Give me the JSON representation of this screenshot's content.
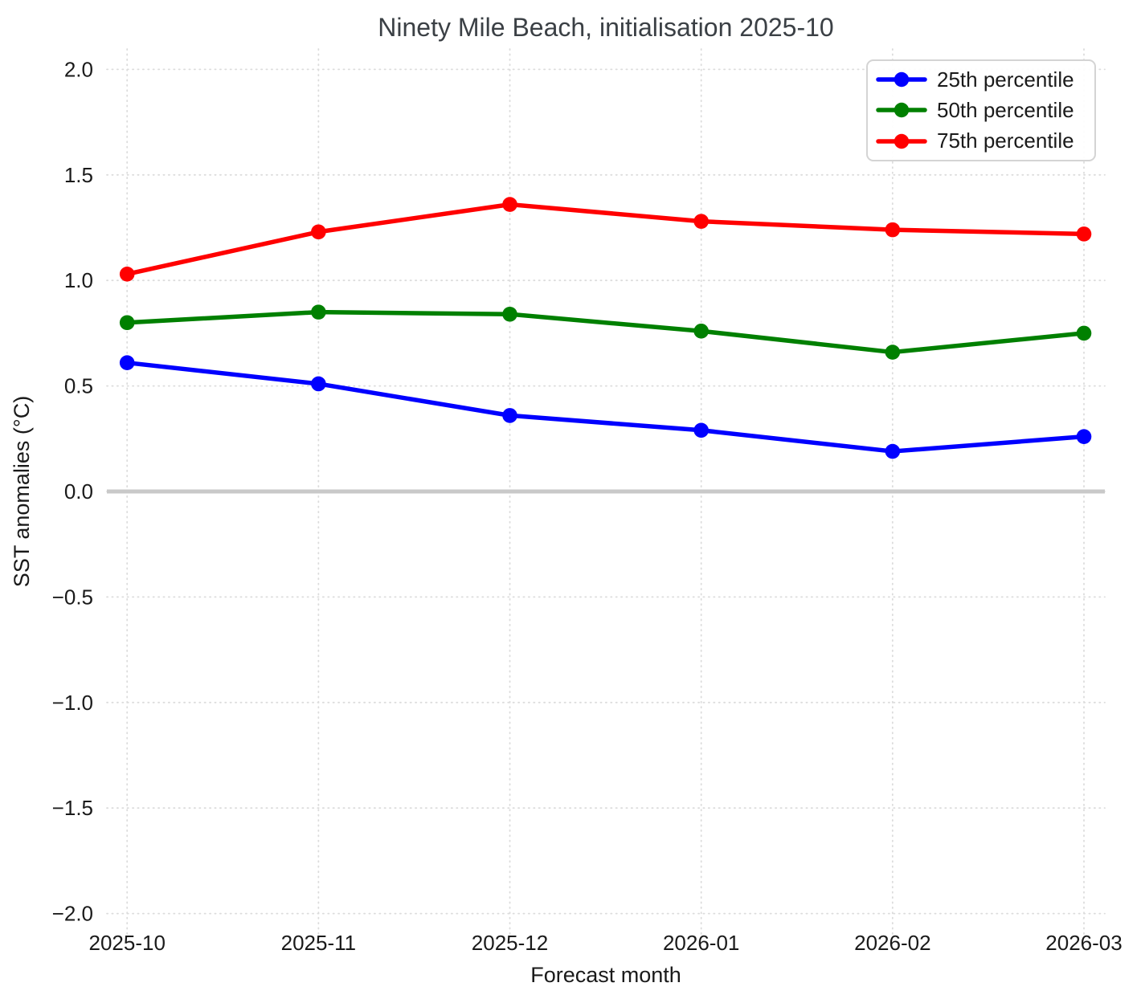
{
  "chart_data": {
    "type": "line",
    "title": "Ninety Mile Beach, initialisation 2025-10",
    "xlabel": "Forecast month",
    "ylabel": "SST anomalies (°C)",
    "categories": [
      "2025-10",
      "2025-11",
      "2025-12",
      "2026-01",
      "2026-02",
      "2026-03"
    ],
    "series": [
      {
        "name": "25th percentile",
        "color": "#0000ff",
        "values": [
          0.61,
          0.51,
          0.36,
          0.29,
          0.19,
          0.26
        ]
      },
      {
        "name": "50th percentile",
        "color": "#008000",
        "values": [
          0.8,
          0.85,
          0.84,
          0.76,
          0.66,
          0.75
        ]
      },
      {
        "name": "75th percentile",
        "color": "#ff0000",
        "values": [
          1.03,
          1.23,
          1.36,
          1.28,
          1.24,
          1.22
        ]
      }
    ],
    "ylim": [
      -2.0,
      2.0
    ],
    "yticks": [
      2.0,
      1.5,
      1.0,
      0.5,
      0.0,
      -0.5,
      -1.0,
      -1.5,
      -2.0
    ],
    "grid": true,
    "grid_style": "dotted",
    "grid_color": "#dcdcdc",
    "zero_line": true,
    "zero_line_color": "#c9c9c9",
    "legend_position": "upper right",
    "title_color": "#3b4045"
  }
}
